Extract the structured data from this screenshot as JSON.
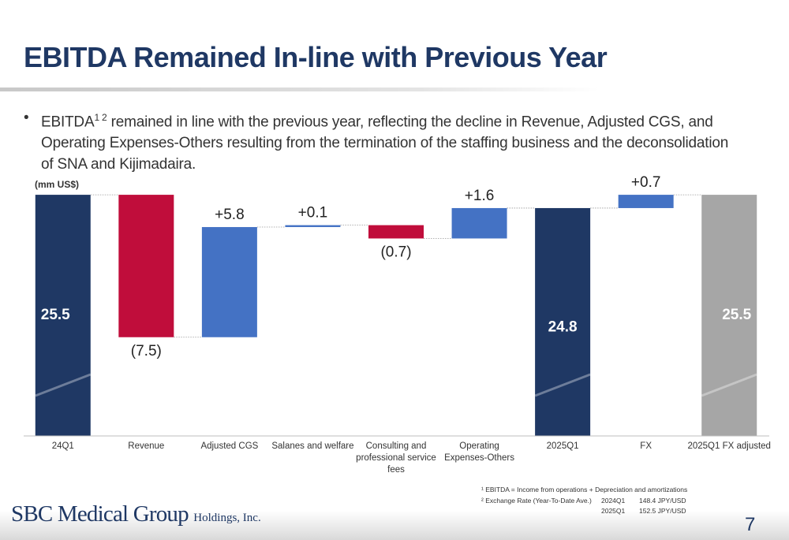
{
  "header": {
    "title": "EBITDA Remained In-line with Previous Year"
  },
  "bullet": {
    "lead": "EBITDA",
    "sup": "1 2",
    "text": "remained in line with the previous year, reflecting the decline in Revenue, Adjusted CGS, and Operating Expenses-Others resulting from the termination of the staffing business and the deconsolidation of SNA and Kijimadaira."
  },
  "chart_data": {
    "type": "waterfall",
    "unit_label": "(mm US$)",
    "categories": [
      "24Q1",
      "Revenue",
      "Adjusted CGS",
      "Salanes and welfare",
      "Consulting and professional service fees",
      "Operating Expenses-Others",
      "2025Q1",
      "FX",
      "2025Q1 FX adjusted"
    ],
    "measure": [
      "absolute",
      "relative",
      "relative",
      "relative",
      "relative",
      "relative",
      "absolute",
      "relative",
      "absolute"
    ],
    "values": [
      25.5,
      -7.5,
      5.8,
      0.1,
      -0.7,
      1.6,
      24.8,
      0.7,
      25.5
    ],
    "value_labels": [
      "25.5",
      "(7.5)",
      "+5.8",
      "+0.1",
      "(0.7)",
      "+1.6",
      "24.8",
      "+0.7",
      "25.5"
    ],
    "colors": [
      "#1f3864",
      "#c00d3b",
      "#4472c4",
      "#4472c4",
      "#c00d3b",
      "#4472c4",
      "#1f3864",
      "#4472c4",
      "#a6a6a6"
    ],
    "ylim": [
      12.8,
      26.5
    ],
    "axis_break": true
  },
  "footnotes": {
    "note1": "¹ EBITDA = Income from operations + Depreciation and amortizations",
    "note2": "² Exchange Rate (Year-To-Date Ave.)",
    "rates": [
      [
        "2024Q1",
        "148.4 JPY/USD"
      ],
      [
        "2025Q1",
        "152.5 JPY/USD"
      ]
    ]
  },
  "footer": {
    "company": "SBC Medical Group",
    "suffix": "Holdings, Inc.",
    "page": "7"
  }
}
